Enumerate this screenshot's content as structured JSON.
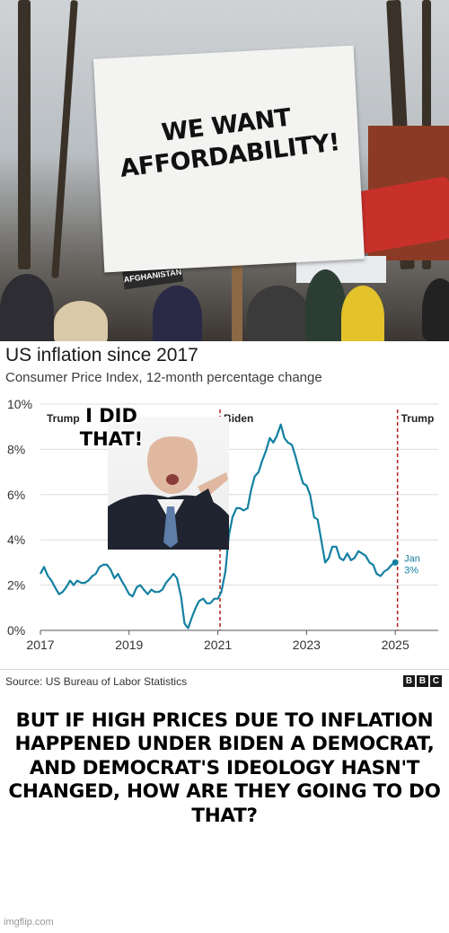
{
  "top_panel": {
    "sign_text": "WE WANT AFFORDABILITY!",
    "small_sign_text": "AFGHANISTAN"
  },
  "chart_panel": {
    "overlay_caption": "I DID THAT!",
    "source": "Source: US Bureau of Labor Statistics",
    "logo_letters": [
      "B",
      "B",
      "C"
    ]
  },
  "bottom_panel": {
    "caption": "BUT IF HIGH PRICES DUE TO INFLATION HAPPENED UNDER BIDEN A DEMOCRAT, AND DEMOCRAT'S IDEOLOGY HASN'T CHANGED, HOW ARE THEY GOING TO DO THAT?",
    "watermark": "imgflip.com"
  },
  "chart_data": {
    "type": "line",
    "title": "US inflation since 2017",
    "subtitle": "Consumer Price Index, 12-month percentage change",
    "xlabel": "",
    "ylabel": "",
    "xlim": [
      2017,
      2025.3
    ],
    "ylim": [
      0,
      10
    ],
    "x_ticks": [
      "2017",
      "2019",
      "2021",
      "2023",
      "2025"
    ],
    "y_ticks": [
      "0%",
      "2%",
      "4%",
      "6%",
      "8%",
      "10%"
    ],
    "grid": "horizontal",
    "line_color": "#1380a1",
    "annotations": [
      {
        "x": 2017.0,
        "label": "Trump"
      },
      {
        "x": 2021.05,
        "label": "Biden"
      },
      {
        "x": 2025.05,
        "label": "Trump"
      }
    ],
    "end_label": {
      "month": "Jan",
      "value_text": "3%"
    },
    "series": [
      {
        "x": [
          2017.0,
          2017.08,
          2017.17,
          2017.25,
          2017.33,
          2017.42,
          2017.5,
          2017.58,
          2017.67,
          2017.75,
          2017.83,
          2017.92,
          2018.0,
          2018.08,
          2018.17,
          2018.25,
          2018.33,
          2018.42,
          2018.5,
          2018.58,
          2018.67,
          2018.75,
          2018.83,
          2018.92,
          2019.0,
          2019.08,
          2019.17,
          2019.25,
          2019.33,
          2019.42,
          2019.5,
          2019.58,
          2019.67,
          2019.75,
          2019.83,
          2019.92,
          2020.0,
          2020.08,
          2020.17,
          2020.25,
          2020.33,
          2020.42,
          2020.5,
          2020.58,
          2020.67,
          2020.75,
          2020.83,
          2020.92,
          2021.0,
          2021.08,
          2021.17,
          2021.25,
          2021.33,
          2021.42,
          2021.5,
          2021.58,
          2021.67,
          2021.75,
          2021.83,
          2021.92,
          2022.0,
          2022.08,
          2022.17,
          2022.25,
          2022.33,
          2022.42,
          2022.5,
          2022.58,
          2022.67,
          2022.75,
          2022.83,
          2022.92,
          2023.0,
          2023.08,
          2023.17,
          2023.25,
          2023.33,
          2023.42,
          2023.5,
          2023.58,
          2023.67,
          2023.75,
          2023.83,
          2023.92,
          2024.0,
          2024.08,
          2024.17,
          2024.25,
          2024.33,
          2024.42,
          2024.5,
          2024.58,
          2024.67,
          2024.75,
          2024.83,
          2024.92,
          2025.0
        ],
        "y": [
          2.5,
          2.8,
          2.4,
          2.2,
          1.9,
          1.6,
          1.7,
          1.9,
          2.2,
          2.0,
          2.2,
          2.1,
          2.1,
          2.2,
          2.4,
          2.5,
          2.8,
          2.9,
          2.9,
          2.7,
          2.3,
          2.5,
          2.2,
          1.9,
          1.6,
          1.5,
          1.9,
          2.0,
          1.8,
          1.6,
          1.8,
          1.7,
          1.7,
          1.8,
          2.1,
          2.3,
          2.5,
          2.3,
          1.5,
          0.3,
          0.1,
          0.6,
          1.0,
          1.3,
          1.4,
          1.2,
          1.2,
          1.4,
          1.4,
          1.7,
          2.6,
          4.2,
          5.0,
          5.4,
          5.4,
          5.3,
          5.4,
          6.2,
          6.8,
          7.0,
          7.5,
          7.9,
          8.5,
          8.3,
          8.6,
          9.1,
          8.5,
          8.3,
          8.2,
          7.7,
          7.1,
          6.5,
          6.4,
          6.0,
          5.0,
          4.9,
          4.0,
          3.0,
          3.2,
          3.7,
          3.7,
          3.2,
          3.1,
          3.4,
          3.1,
          3.2,
          3.5,
          3.4,
          3.3,
          3.0,
          2.9,
          2.5,
          2.4,
          2.6,
          2.7,
          2.9,
          3.0
        ]
      }
    ]
  }
}
